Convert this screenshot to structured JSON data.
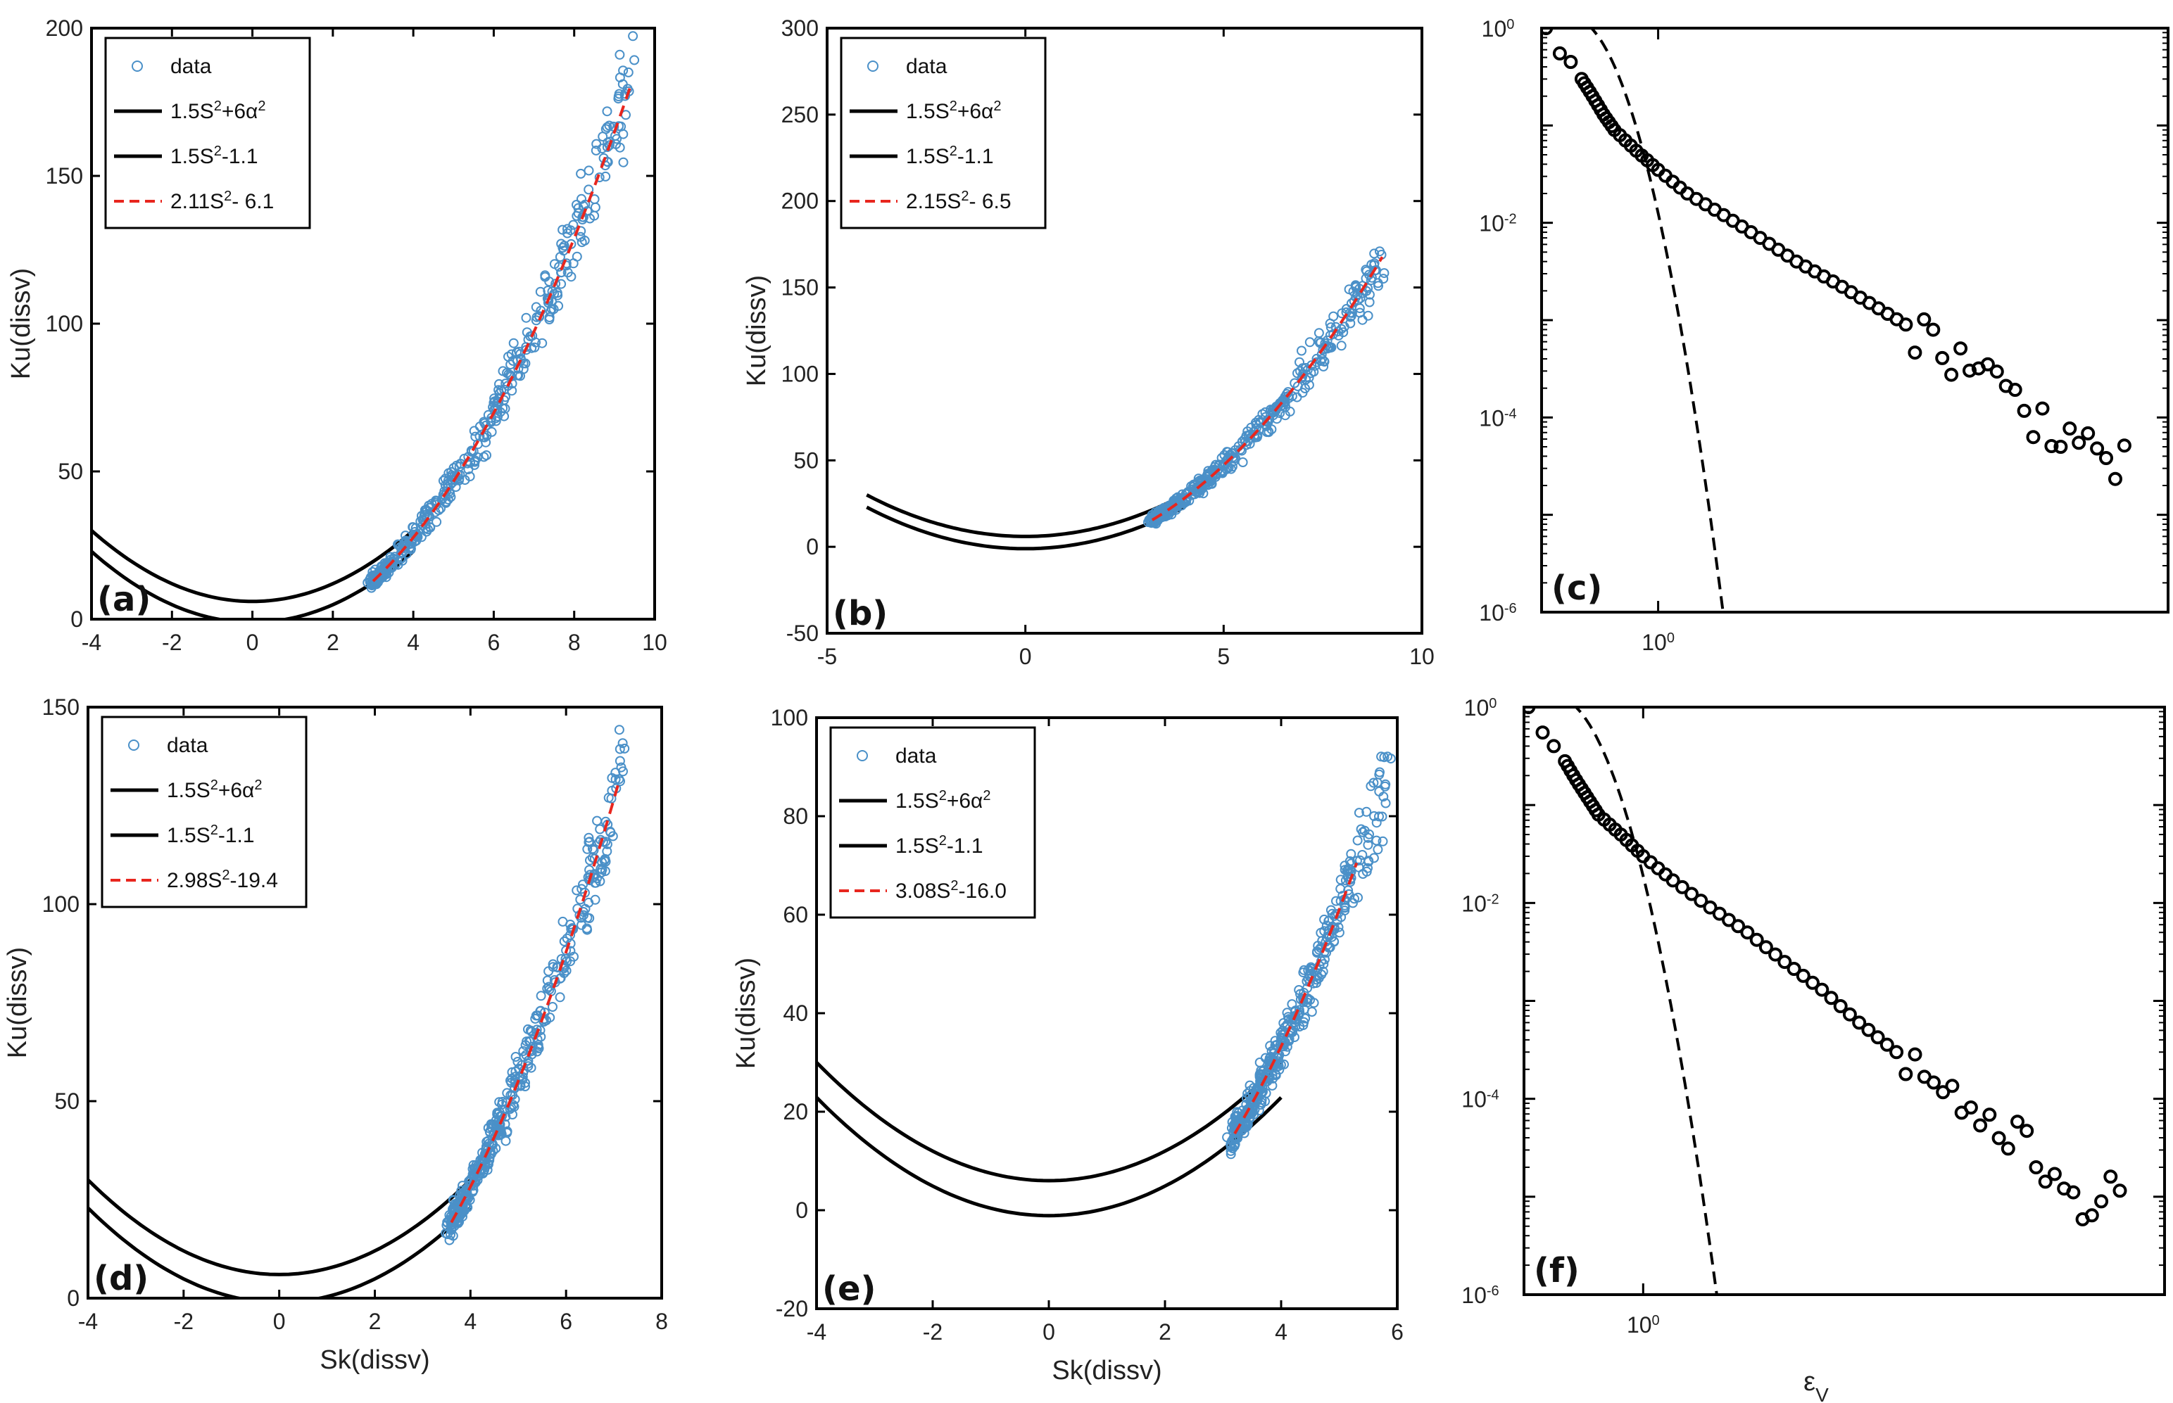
{
  "chart_data": [
    {
      "id": "a",
      "type": "scatter",
      "panel_label": "(a)",
      "xlabel": "",
      "ylabel": "Ku(dissv)",
      "xlim": [
        -4,
        10
      ],
      "ylim": [
        0,
        200
      ],
      "xticks": [
        "-4",
        "-2",
        "0",
        "2",
        "4",
        "6",
        "8",
        "10"
      ],
      "yticks": [
        "0",
        "50",
        "100",
        "150",
        "200"
      ],
      "legend": [
        "data",
        "1.5S2+6α2",
        "1.5S2-1.1",
        "2.11S2- 6.1"
      ],
      "series": [
        {
          "name": "data",
          "kind": "points",
          "color": "#4a90c8",
          "x_range": [
            3.0,
            9.5
          ]
        },
        {
          "name": "1.5S2+6α2",
          "kind": "curve",
          "a": 1.5,
          "b": 6.0,
          "x": [
            -4,
            4
          ],
          "color": "#000000"
        },
        {
          "name": "1.5S2-1.1",
          "kind": "curve",
          "a": 1.5,
          "b": -1.1,
          "x": [
            -4,
            4
          ],
          "color": "#000000"
        },
        {
          "name": "2.11S2- 6.1",
          "kind": "fit",
          "a": 2.11,
          "b": -6.1,
          "x": [
            3.0,
            9.4
          ],
          "color": "#e8261e"
        }
      ]
    },
    {
      "id": "b",
      "type": "scatter",
      "panel_label": "(b)",
      "xlabel": "",
      "ylabel": "Ku(dissv)",
      "xlim": [
        -5,
        10
      ],
      "ylim": [
        -50,
        300
      ],
      "xticks": [
        "-5",
        "0",
        "5",
        "10"
      ],
      "yticks": [
        "-50",
        "0",
        "50",
        "100",
        "150",
        "200",
        "250",
        "300"
      ],
      "legend": [
        "data",
        "1.5S2+6α2",
        "1.5S2-1.1",
        "2.15S2- 6.5"
      ],
      "series": [
        {
          "name": "data",
          "kind": "points",
          "color": "#4a90c8",
          "x_range": [
            3.2,
            9.0
          ]
        },
        {
          "name": "1.5S2+6α2",
          "kind": "curve",
          "a": 1.5,
          "b": 6.0,
          "x": [
            -4,
            4
          ],
          "color": "#000000"
        },
        {
          "name": "1.5S2-1.1",
          "kind": "curve",
          "a": 1.5,
          "b": -1.1,
          "x": [
            -4,
            4
          ],
          "color": "#000000"
        },
        {
          "name": "2.15S2- 6.5",
          "kind": "fit",
          "a": 2.15,
          "b": -6.5,
          "x": [
            3.2,
            9.0
          ],
          "color": "#e8261e"
        }
      ]
    },
    {
      "id": "c",
      "type": "scatter-loglog",
      "panel_label": "(c)",
      "xlabel": "",
      "ylabel": "",
      "ylim_exp": [
        -6,
        0
      ],
      "yticks": [
        "10^0",
        "10^-2",
        "10^-4",
        "10^-6"
      ],
      "xticks": [
        "10^0"
      ],
      "series": [
        {
          "name": "pdf",
          "kind": "circles",
          "color": "#000000",
          "points": [
            [
              0.06,
              1.0
            ],
            [
              0.25,
              0.55
            ],
            [
              0.4,
              0.45
            ],
            [
              0.55,
              0.3
            ],
            [
              0.7,
              0.2
            ],
            [
              0.85,
              0.13
            ],
            [
              1.0,
              0.09
            ],
            [
              1.3,
              0.055
            ],
            [
              1.6,
              0.035
            ],
            [
              2.0,
              0.02
            ],
            [
              2.5,
              0.012
            ],
            [
              3.0,
              0.007
            ],
            [
              3.5,
              0.004
            ],
            [
              4.0,
              0.0025
            ],
            [
              4.5,
              0.0015
            ],
            [
              5.0,
              0.0009
            ],
            [
              5.5,
              0.0005
            ],
            [
              6.0,
              0.0003
            ],
            [
              6.5,
              0.00015
            ],
            [
              7.0,
              8e-05
            ],
            [
              7.5,
              5e-05
            ],
            [
              8.0,
              3e-05
            ]
          ]
        },
        {
          "name": "gaussian",
          "kind": "dashed",
          "color": "#000000"
        }
      ]
    },
    {
      "id": "d",
      "type": "scatter",
      "panel_label": "(d)",
      "xlabel": "Sk(dissv)",
      "ylabel": "Ku(dissv)",
      "xlim": [
        -4,
        8
      ],
      "ylim": [
        0,
        150
      ],
      "xticks": [
        "-4",
        "-2",
        "0",
        "2",
        "4",
        "6",
        "8"
      ],
      "yticks": [
        "0",
        "50",
        "100",
        "150"
      ],
      "legend": [
        "data",
        "1.5S2+6α2",
        "1.5S2-1.1",
        "2.98S2-19.4"
      ],
      "series": [
        {
          "name": "data",
          "kind": "points",
          "color": "#4a90c8",
          "x_range": [
            3.6,
            7.2
          ]
        },
        {
          "name": "1.5S2+6α2",
          "kind": "curve",
          "a": 1.5,
          "b": 6.0,
          "x": [
            -4,
            4
          ],
          "color": "#000000"
        },
        {
          "name": "1.5S2-1.1",
          "kind": "curve",
          "a": 1.5,
          "b": -1.1,
          "x": [
            -4,
            4
          ],
          "color": "#000000"
        },
        {
          "name": "2.98S2-19.4",
          "kind": "fit",
          "a": 2.98,
          "b": -19.4,
          "x": [
            3.6,
            7.1
          ],
          "color": "#e8261e"
        }
      ]
    },
    {
      "id": "e",
      "type": "scatter",
      "panel_label": "(e)",
      "xlabel": "Sk(dissv)",
      "ylabel": "Ku(dissv)",
      "xlim": [
        -4,
        6
      ],
      "ylim": [
        -20,
        100
      ],
      "xticks": [
        "-4",
        "-2",
        "0",
        "2",
        "4",
        "6"
      ],
      "yticks": [
        "-20",
        "0",
        "20",
        "40",
        "60",
        "80",
        "100"
      ],
      "legend": [
        "data",
        "1.5S2+6α2",
        "1.5S2-1.1",
        "3.08S2-16.0"
      ],
      "series": [
        {
          "name": "data",
          "kind": "points",
          "color": "#4a90c8",
          "x_range": [
            3.2,
            5.8
          ]
        },
        {
          "name": "1.5S2+6α2",
          "kind": "curve",
          "a": 1.5,
          "b": 6.0,
          "x": [
            -4,
            4
          ],
          "color": "#000000"
        },
        {
          "name": "1.5S2-1.1",
          "kind": "curve",
          "a": 1.5,
          "b": -1.1,
          "x": [
            -4,
            4
          ],
          "color": "#000000"
        },
        {
          "name": "3.08S2-16.0",
          "kind": "fit",
          "a": 3.08,
          "b": -16.0,
          "x": [
            3.2,
            5.3
          ],
          "color": "#e8261e"
        }
      ]
    },
    {
      "id": "f",
      "type": "scatter-loglog",
      "panel_label": "(f)",
      "xlabel": "εV",
      "ylabel": "",
      "ylim_exp": [
        -6,
        0
      ],
      "yticks": [
        "10^0",
        "10^-2",
        "10^-4",
        "10^-6"
      ],
      "xticks": [
        "10^0"
      ],
      "series": [
        {
          "name": "pdf",
          "kind": "circles",
          "color": "#000000",
          "points": [
            [
              0.06,
              1.0
            ],
            [
              0.25,
              0.55
            ],
            [
              0.4,
              0.4
            ],
            [
              0.55,
              0.28
            ],
            [
              0.7,
              0.18
            ],
            [
              0.85,
              0.12
            ],
            [
              1.0,
              0.08
            ],
            [
              1.3,
              0.05
            ],
            [
              1.6,
              0.03
            ],
            [
              2.0,
              0.017
            ],
            [
              2.5,
              0.009
            ],
            [
              3.0,
              0.005
            ],
            [
              3.5,
              0.0025
            ],
            [
              4.0,
              0.0013
            ],
            [
              4.5,
              0.0006
            ],
            [
              5.0,
              0.0003
            ],
            [
              5.5,
              0.00015
            ],
            [
              6.0,
              8e-05
            ],
            [
              6.5,
              4e-05
            ],
            [
              7.0,
              2e-05
            ],
            [
              7.5,
              1e-05
            ],
            [
              8.0,
              1e-05
            ]
          ]
        },
        {
          "name": "gaussian",
          "kind": "dashed",
          "color": "#000000"
        }
      ]
    }
  ]
}
